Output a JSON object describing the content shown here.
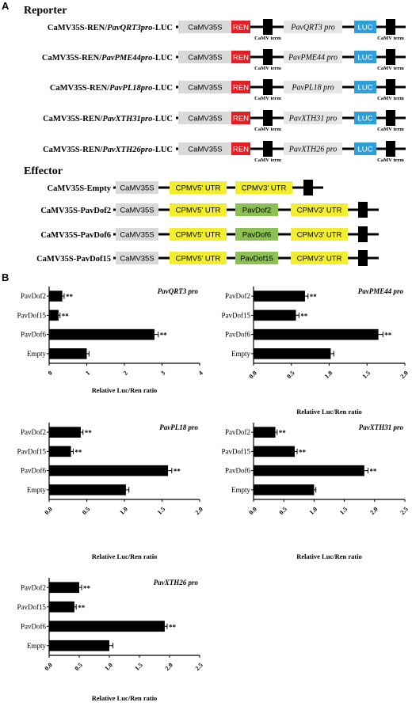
{
  "panel_labels": {
    "a": "A",
    "b": "B"
  },
  "reporter": {
    "heading": "Reporter",
    "constructs": [
      {
        "name_prefix": "CaMV35S-REN/",
        "name_italic": "PavQRT3pro",
        "name_suffix": "-LUC",
        "promoter": "PavQRT3 pro"
      },
      {
        "name_prefix": "CaMV35S-REN/",
        "name_italic": "PavPME44pro",
        "name_suffix": "-LUC",
        "promoter": "PavPME44 pro"
      },
      {
        "name_prefix": "CaMV35S-REN/",
        "name_italic": "PavPL18pro",
        "name_suffix": "-LUC",
        "promoter": "PavPL18 pro"
      },
      {
        "name_prefix": "CaMV35S-REN/",
        "name_italic": "PavXTH31pro",
        "name_suffix": "-LUC",
        "promoter": "PavXTH31 pro"
      },
      {
        "name_prefix": "CaMV35S-REN/",
        "name_italic": "PavXTH26pro",
        "name_suffix": "-LUC",
        "promoter": "PavXTH26 pro"
      }
    ],
    "block_labels": {
      "camv35s": "CaMV35S",
      "ren": "REN",
      "luc": "LUC",
      "term_line1": "CaMV",
      "term_line2": "term"
    }
  },
  "effector": {
    "heading": "Effector",
    "block_labels": {
      "camv35s": "CaMV35S",
      "utr5": "CPMV5' UTR",
      "utr3": "CPMV3' UTR"
    },
    "constructs": [
      {
        "name": "CaMV35S-Empty",
        "gene": ""
      },
      {
        "name": "CaMV35S-PavDof2",
        "gene": "PavDof2"
      },
      {
        "name": "CaMV35S-PavDof6",
        "gene": "PavDof6"
      },
      {
        "name": "CaMV35S-PavDof15",
        "gene": "PavDof15"
      }
    ]
  },
  "colors": {
    "camv35s_block": "#d9d9d9",
    "ren_block": "#e31e24",
    "luc_block": "#2e9fd9",
    "promoter_block": "#e6e6e6",
    "utr_block": "#f2ee2e",
    "gene_block": "#8cc152",
    "terminator": "#000000",
    "bar": "#000000"
  },
  "chart_data": [
    {
      "type": "bar",
      "orientation": "horizontal",
      "title": "PavQRT3 pro",
      "xlabel": "Relative Luc/Ren ratio",
      "ylabel": "",
      "categories": [
        "PavDof2",
        "PavDof15",
        "PavDof6",
        "Empty"
      ],
      "values": [
        0.35,
        0.25,
        2.8,
        1.0
      ],
      "errors": [
        0.05,
        0.04,
        0.1,
        0.06
      ],
      "significance": [
        "**",
        "**",
        "**",
        ""
      ],
      "xlim": [
        0,
        4
      ],
      "xticks": [
        "0",
        "1",
        "2",
        "3",
        "4"
      ],
      "xtick_values": [
        0,
        1,
        2,
        3,
        4
      ],
      "grid": false
    },
    {
      "type": "bar",
      "orientation": "horizontal",
      "title": "PavPME44 pro",
      "xlabel": "Relative Luc/Ren ratio",
      "ylabel": "",
      "categories": [
        "PavDof2",
        "PavDof15",
        "PavDof6",
        "Empty"
      ],
      "values": [
        0.68,
        0.56,
        1.65,
        1.02
      ],
      "errors": [
        0.04,
        0.04,
        0.06,
        0.04
      ],
      "significance": [
        "**",
        "**",
        "**",
        ""
      ],
      "xlim": [
        0,
        2
      ],
      "xticks": [
        "0.0",
        "0.5",
        "1.0",
        "1.5",
        "2.0"
      ],
      "xtick_values": [
        0,
        0.5,
        1,
        1.5,
        2
      ],
      "grid": false
    },
    {
      "type": "bar",
      "orientation": "horizontal",
      "title": "PavPL18 pro",
      "xlabel": "Relative Luc/Ren ratio",
      "ylabel": "",
      "categories": [
        "PavDof2",
        "PavDof15",
        "PavDof6",
        "Empty"
      ],
      "values": [
        0.42,
        0.29,
        1.58,
        1.02
      ],
      "errors": [
        0.03,
        0.03,
        0.05,
        0.04
      ],
      "significance": [
        "**",
        "**",
        "**",
        ""
      ],
      "xlim": [
        0,
        2
      ],
      "xticks": [
        "0.0",
        "0.5",
        "1.0",
        "1.5",
        "2.0"
      ],
      "xtick_values": [
        0,
        0.5,
        1,
        1.5,
        2
      ],
      "grid": false
    },
    {
      "type": "bar",
      "orientation": "horizontal",
      "title": "PavXTH31 pro",
      "xlabel": "Relative Luc/Ren ratio",
      "ylabel": "",
      "categories": [
        "PavDof2",
        "PavDof15",
        "PavDof6",
        "Empty"
      ],
      "values": [
        0.36,
        0.68,
        1.83,
        1.0
      ],
      "errors": [
        0.03,
        0.04,
        0.06,
        0.03
      ],
      "significance": [
        "**",
        "**",
        "**",
        ""
      ],
      "xlim": [
        0,
        2.5
      ],
      "xticks": [
        "0.0",
        "0.5",
        "1.0",
        "1.5",
        "2.0",
        "2.5"
      ],
      "xtick_values": [
        0,
        0.5,
        1,
        1.5,
        2,
        2.5
      ],
      "grid": false
    },
    {
      "type": "bar",
      "orientation": "horizontal",
      "title": "PavXTH26 pro",
      "xlabel": "Relative Luc/Ren ratio",
      "ylabel": "",
      "categories": [
        "PavDof2",
        "PavDof15",
        "PavDof6",
        "Empty"
      ],
      "values": [
        0.5,
        0.42,
        1.92,
        1.0
      ],
      "errors": [
        0.04,
        0.03,
        0.04,
        0.06
      ],
      "significance": [
        "**",
        "**",
        "**",
        ""
      ],
      "xlim": [
        0,
        2.5
      ],
      "xticks": [
        "0.0",
        "0.5",
        "1.0",
        "1.5",
        "2.0",
        "2.5"
      ],
      "xtick_values": [
        0,
        0.5,
        1,
        1.5,
        2,
        2.5
      ],
      "grid": false
    }
  ]
}
